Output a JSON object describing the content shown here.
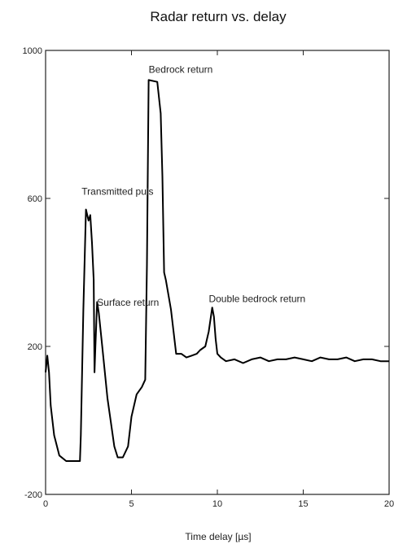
{
  "chart_data": {
    "type": "line",
    "title": "Radar return vs. delay",
    "xlabel": "Time delay [µs]",
    "ylabel": "",
    "xlim": [
      0,
      20
    ],
    "ylim": [
      -200,
      1000
    ],
    "xticks": [
      0,
      5,
      10,
      15,
      20
    ],
    "yticks": [
      -200,
      200,
      600,
      1000
    ],
    "grid": false,
    "series": [
      {
        "name": "",
        "color": "#000000",
        "x": [
          0,
          0.1,
          0.2,
          0.3,
          0.5,
          0.8,
          1.2,
          1.6,
          2.0,
          2.05,
          2.2,
          2.35,
          2.5,
          2.6,
          2.7,
          2.8,
          2.85,
          2.9,
          3.0,
          3.1,
          3.3,
          3.6,
          4.0,
          4.2,
          4.5,
          4.8,
          5.0,
          5.3,
          5.6,
          5.8,
          5.9,
          6.0,
          6.5,
          6.7,
          6.8,
          6.9,
          7.0,
          7.3,
          7.6,
          7.9,
          8.2,
          8.5,
          8.8,
          9.0,
          9.3,
          9.5,
          9.7,
          9.8,
          9.9,
          10.0,
          10.2,
          10.5,
          11,
          11.5,
          12,
          12.5,
          13,
          13.5,
          14,
          14.5,
          15,
          15.5,
          16,
          16.5,
          17,
          17.5,
          18,
          18.5,
          19,
          19.5,
          20
        ],
        "y": [
          130,
          175,
          130,
          40,
          -40,
          -95,
          -110,
          -110,
          -110,
          -40,
          300,
          570,
          540,
          555,
          480,
          380,
          130,
          200,
          320,
          290,
          200,
          60,
          -70,
          -100,
          -100,
          -70,
          10,
          70,
          90,
          110,
          420,
          920,
          915,
          830,
          660,
          400,
          380,
          300,
          180,
          180,
          170,
          175,
          180,
          190,
          200,
          240,
          305,
          280,
          220,
          180,
          170,
          160,
          165,
          155,
          165,
          170,
          160,
          165,
          165,
          170,
          165,
          160,
          170,
          165,
          165,
          170,
          160,
          165,
          165,
          160,
          160
        ]
      }
    ],
    "annotations": [
      {
        "text": "Bedrock return",
        "x": 6.0,
        "y": 940
      },
      {
        "text": "Transmitted puls",
        "x": 2.1,
        "y": 610
      },
      {
        "text": "Surface return",
        "x": 3.0,
        "y": 310
      },
      {
        "text": "Double bedrock return",
        "x": 9.5,
        "y": 320
      }
    ]
  }
}
